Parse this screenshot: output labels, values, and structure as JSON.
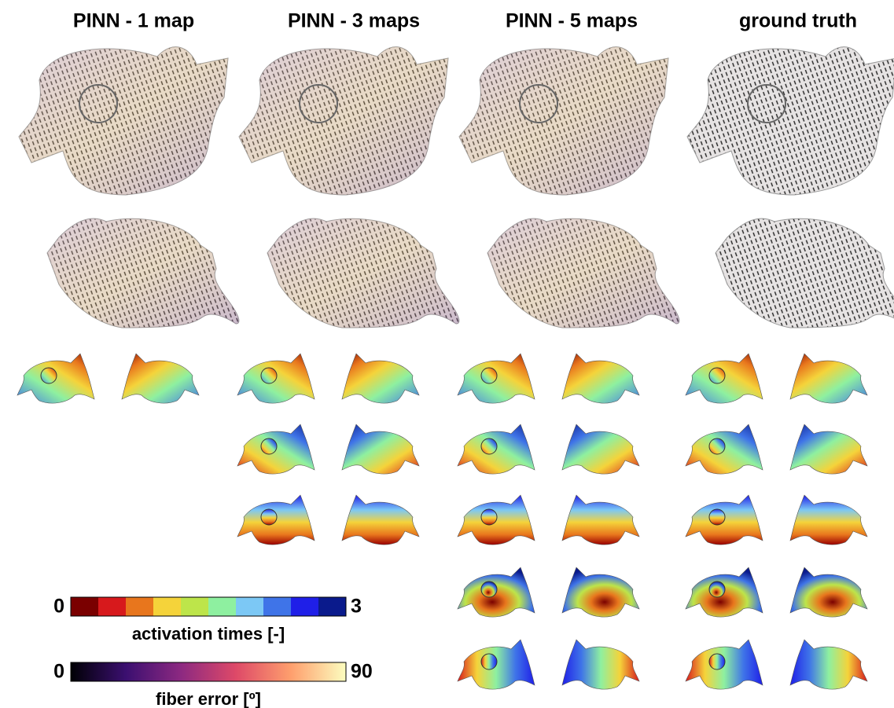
{
  "columns": [
    {
      "title": "PINN - 1 map"
    },
    {
      "title": "PINN - 3 maps"
    },
    {
      "title": "PINN - 5 maps"
    },
    {
      "title": "ground truth"
    }
  ],
  "colorbars": [
    {
      "min": 0,
      "max": 3,
      "label": "activation times [-]",
      "colors": [
        "#7a0000",
        "#d7191c",
        "#e8761d",
        "#f5d33a",
        "#bde54a",
        "#8ef0a0",
        "#7cc8f5",
        "#3f74e8",
        "#1f1fe8",
        "#0a1a8c"
      ]
    },
    {
      "min": 0,
      "max": 90,
      "label": "fiber error [º]",
      "colors": [
        "#000004",
        "#3b0f70",
        "#8c2981",
        "#de4968",
        "#fe9f6d",
        "#fcfdbf"
      ]
    }
  ]
}
